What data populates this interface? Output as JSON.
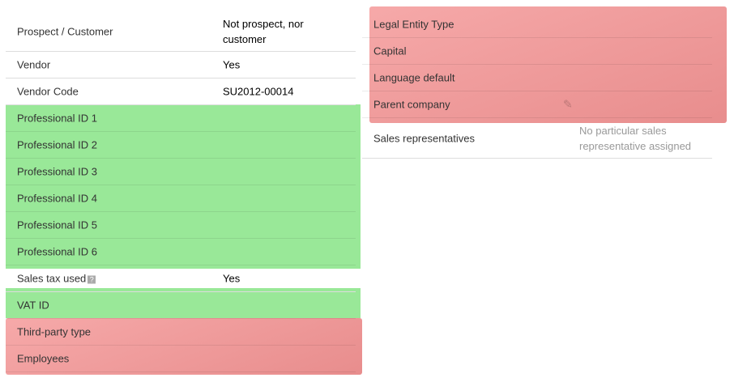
{
  "left": {
    "rows": [
      {
        "label": "Prospect / Customer",
        "value": "Not prospect, nor customer"
      },
      {
        "label": "Vendor",
        "value": "Yes"
      },
      {
        "label": "Vendor Code",
        "value": "SU2012-00014"
      },
      {
        "label": "Professional ID 1"
      },
      {
        "label": "Professional ID 2"
      },
      {
        "label": "Professional ID 3"
      },
      {
        "label": "Professional ID 4"
      },
      {
        "label": "Professional ID 5"
      },
      {
        "label": "Professional ID 6"
      },
      {
        "label": "Sales tax used",
        "value": "Yes"
      },
      {
        "label": "VAT ID"
      },
      {
        "label": "Third-party type"
      },
      {
        "label": "Employees"
      }
    ]
  },
  "right": {
    "rows": [
      {
        "label": "Legal Entity Type"
      },
      {
        "label": "Capital"
      },
      {
        "label": "Language default"
      },
      {
        "label": "Parent company"
      },
      {
        "label": "Sales representatives",
        "value": "No particular sales representative assigned"
      }
    ]
  }
}
